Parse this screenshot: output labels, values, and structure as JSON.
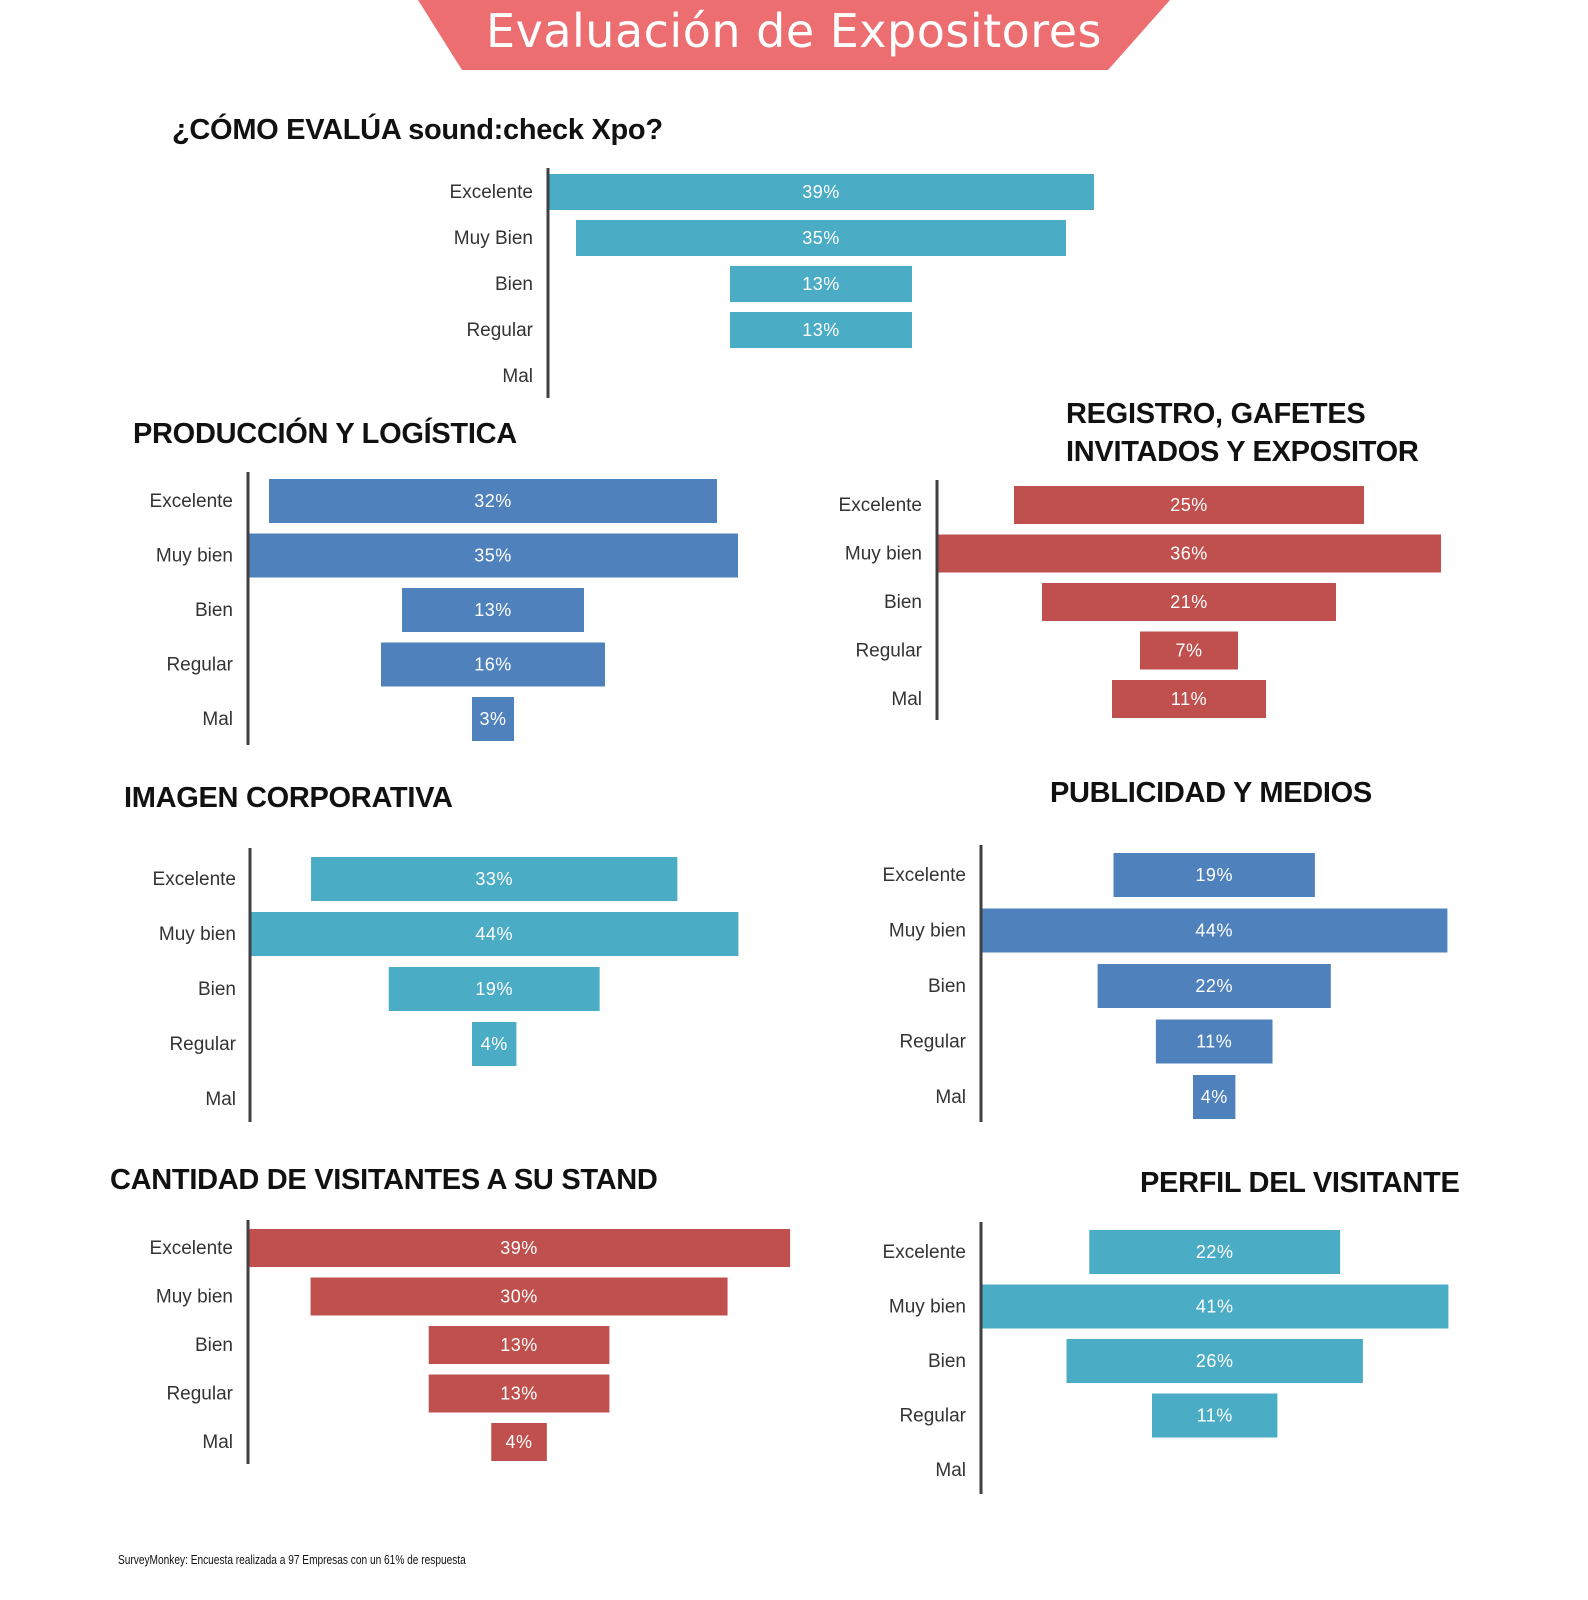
{
  "header": {
    "title": "Evaluación de Expositores",
    "banner_color": "#ec6e71"
  },
  "footnote": "SurveyMonkey: Encuesta realizada a 97 Empresas con un 61% de respuesta",
  "colors": {
    "teal": "#4bacc6",
    "blue": "#4f81bd",
    "red": "#c0504d",
    "axis": "#404040"
  },
  "chart_data": [
    {
      "id": "general",
      "type": "bar",
      "orientation": "horizontal-funnel",
      "title": "¿CÓMO EVALÚA sound:check Xpo?",
      "categories": [
        "Excelente",
        "Muy Bien",
        "Bien",
        "Regular",
        "Mal"
      ],
      "values": [
        39,
        35,
        13,
        13,
        0
      ],
      "labels": [
        "39%",
        "35%",
        "13%",
        "13%",
        ""
      ],
      "color": "#4bacc6",
      "unit": "%"
    },
    {
      "id": "produccion",
      "type": "bar",
      "orientation": "horizontal-funnel",
      "title": "PRODUCCIÓN  Y LOGÍSTICA",
      "categories": [
        "Excelente",
        "Muy bien",
        "Bien",
        "Regular",
        "Mal"
      ],
      "values": [
        32,
        35,
        13,
        16,
        3
      ],
      "labels": [
        "32%",
        "35%",
        "13%",
        "16%",
        "3%"
      ],
      "color": "#4f81bd",
      "unit": "%"
    },
    {
      "id": "registro",
      "type": "bar",
      "orientation": "horizontal-funnel",
      "title": "REGISTRO, GAFETES INVITADOS Y EXPOSITOR",
      "title_lines": [
        "REGISTRO, GAFETES",
        "INVITADOS Y EXPOSITOR"
      ],
      "categories": [
        "Excelente",
        "Muy bien",
        "Bien",
        "Regular",
        "Mal"
      ],
      "values": [
        25,
        36,
        21,
        7,
        11
      ],
      "labels": [
        "25%",
        "36%",
        "21%",
        "7%",
        "11%"
      ],
      "color": "#c0504d",
      "unit": "%"
    },
    {
      "id": "imagen",
      "type": "bar",
      "orientation": "horizontal-funnel",
      "title": "IMAGEN CORPORATIVA",
      "categories": [
        "Excelente",
        "Muy bien",
        "Bien",
        "Regular",
        "Mal"
      ],
      "values": [
        33,
        44,
        19,
        4,
        0
      ],
      "labels": [
        "33%",
        "44%",
        "19%",
        "4%",
        ""
      ],
      "color": "#4bacc6",
      "unit": "%"
    },
    {
      "id": "publicidad",
      "type": "bar",
      "orientation": "horizontal-funnel",
      "title": "PUBLICIDAD Y MEDIOS",
      "categories": [
        "Excelente",
        "Muy bien",
        "Bien",
        "Regular",
        "Mal"
      ],
      "values": [
        19,
        44,
        22,
        11,
        4
      ],
      "labels": [
        "19%",
        "44%",
        "22%",
        "11%",
        "4%"
      ],
      "color": "#4f81bd",
      "unit": "%"
    },
    {
      "id": "visitantes",
      "type": "bar",
      "orientation": "horizontal-funnel",
      "title": "CANTIDAD  DE VISITANTES A SU STAND",
      "categories": [
        "Excelente",
        "Muy bien",
        "Bien",
        "Regular",
        "Mal"
      ],
      "values": [
        39,
        30,
        13,
        13,
        4
      ],
      "labels": [
        "39%",
        "30%",
        "13%",
        "13%",
        "4%"
      ],
      "color": "#c0504d",
      "unit": "%"
    },
    {
      "id": "perfil",
      "type": "bar",
      "orientation": "horizontal-funnel",
      "title": "PERFIL DEL VISITANTE",
      "categories": [
        "Excelente",
        "Muy bien",
        "Bien",
        "Regular",
        "Mal"
      ],
      "values": [
        22,
        41,
        26,
        11,
        0
      ],
      "labels": [
        "22%",
        "41%",
        "26%",
        "11%",
        ""
      ],
      "color": "#4bacc6",
      "unit": "%"
    }
  ]
}
